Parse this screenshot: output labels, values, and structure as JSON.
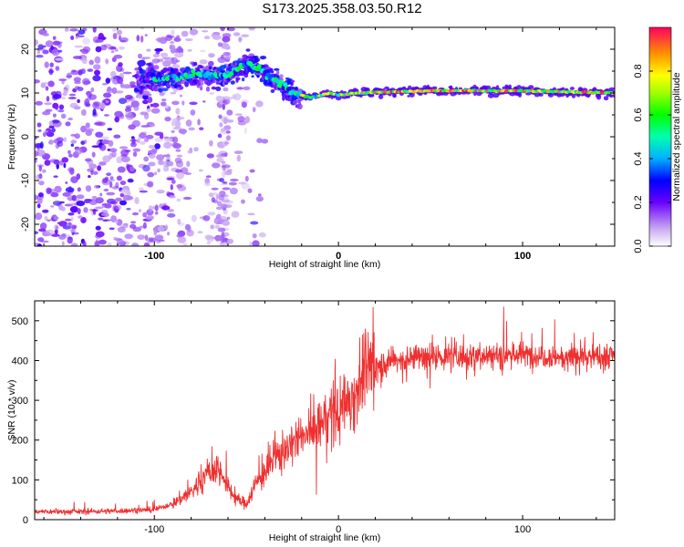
{
  "title": "S173.2025.358.03.50.R12",
  "chart_data": [
    {
      "type": "heatmap",
      "title": "S173.2025.358.03.50.R12",
      "xlabel": "Height of straight line (km)",
      "ylabel": "Frequency (Hz)",
      "xlim": [
        -165,
        150
      ],
      "ylim": [
        -25,
        25
      ],
      "xticks": [
        -100,
        0,
        100
      ],
      "yticks": [
        20,
        10,
        0,
        -10,
        -20
      ],
      "grid": false,
      "colorbar": {
        "label": "Normalized spectral amplitude",
        "range": [
          0,
          1
        ],
        "ticks": [
          0.0,
          0.2,
          0.4,
          0.6,
          0.8
        ]
      },
      "dominant_ridge": {
        "x_km": [
          -100,
          -80,
          -60,
          -48,
          -42,
          -35,
          -25,
          -15,
          -5,
          0,
          10,
          50,
          100,
          150
        ],
        "freq_hz": [
          13,
          14,
          14,
          17,
          15,
          13,
          10,
          9,
          10,
          9.5,
          10,
          10.5,
          10.5,
          10
        ]
      }
    },
    {
      "type": "line",
      "xlabel": "Height of straight line (km)",
      "ylabel": "SNR (10 * v/v)",
      "xlim": [
        -165,
        150
      ],
      "ylim": [
        0,
        550
      ],
      "xticks": [
        -100,
        0,
        100
      ],
      "yticks": [
        0,
        100,
        200,
        300,
        400,
        500
      ],
      "grid": false,
      "series": [
        {
          "name": "SNR",
          "color": "#ee3030",
          "x": [
            -165,
            -140,
            -120,
            -100,
            -90,
            -80,
            -70,
            -65,
            -60,
            -55,
            -50,
            -45,
            -40,
            -35,
            -30,
            -25,
            -20,
            -15,
            -10,
            -5,
            0,
            5,
            10,
            15,
            20,
            30,
            40,
            60,
            80,
            100,
            120,
            140,
            150
          ],
          "y": [
            20,
            20,
            22,
            25,
            40,
            70,
            120,
            130,
            80,
            50,
            40,
            90,
            120,
            150,
            170,
            190,
            210,
            220,
            240,
            260,
            270,
            300,
            330,
            380,
            390,
            400,
            405,
            410,
            415,
            415,
            410,
            410,
            415
          ]
        }
      ]
    }
  ]
}
